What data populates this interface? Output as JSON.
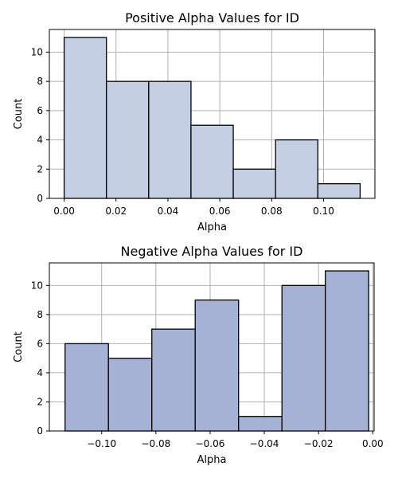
{
  "chart_data": [
    {
      "type": "bar",
      "title": "Positive Alpha Values for ID",
      "xlabel": "Alpha",
      "ylabel": "Count",
      "color": "#c4cfe3",
      "bins": [
        {
          "x0": 0.0,
          "x1": 0.0163,
          "value": 11
        },
        {
          "x0": 0.0163,
          "x1": 0.0326,
          "value": 8
        },
        {
          "x0": 0.0326,
          "x1": 0.0489,
          "value": 8
        },
        {
          "x0": 0.0489,
          "x1": 0.0652,
          "value": 5
        },
        {
          "x0": 0.0652,
          "x1": 0.0815,
          "value": 2
        },
        {
          "x0": 0.0815,
          "x1": 0.0978,
          "value": 4
        },
        {
          "x0": 0.0978,
          "x1": 0.1141,
          "value": 1
        }
      ],
      "xlim": [
        -0.0057,
        0.1198
      ],
      "ylim": [
        0,
        11.55
      ],
      "xticks": [
        0.0,
        0.02,
        0.04,
        0.06,
        0.08,
        0.1
      ],
      "xtick_labels": [
        "0.00",
        "0.02",
        "0.04",
        "0.06",
        "0.08",
        "0.10"
      ],
      "yticks": [
        0,
        2,
        4,
        6,
        8,
        10
      ],
      "ytick_labels": [
        "0",
        "2",
        "4",
        "6",
        "8",
        "10"
      ],
      "grid": true
    },
    {
      "type": "bar",
      "title": "Negative Alpha Values for ID",
      "xlabel": "Alpha",
      "ylabel": "Count",
      "color": "#a5b1d5",
      "bins": [
        {
          "x0": -0.1135,
          "x1": -0.0975,
          "value": 6
        },
        {
          "x0": -0.0975,
          "x1": -0.0815,
          "value": 5
        },
        {
          "x0": -0.0815,
          "x1": -0.0655,
          "value": 7
        },
        {
          "x0": -0.0655,
          "x1": -0.0495,
          "value": 9
        },
        {
          "x0": -0.0495,
          "x1": -0.0335,
          "value": 1
        },
        {
          "x0": -0.0335,
          "x1": -0.0175,
          "value": 10
        },
        {
          "x0": -0.0175,
          "x1": -0.0015,
          "value": 11
        }
      ],
      "xlim": [
        -0.1193,
        0.0005
      ],
      "ylim": [
        0,
        11.55
      ],
      "xticks": [
        -0.1,
        -0.08,
        -0.06,
        -0.04,
        -0.02,
        0.0
      ],
      "xtick_labels": [
        "−0.10",
        "−0.08",
        "−0.06",
        "−0.04",
        "−0.02",
        "0.00"
      ],
      "yticks": [
        0,
        2,
        4,
        6,
        8,
        10
      ],
      "ytick_labels": [
        "0",
        "2",
        "4",
        "6",
        "8",
        "10"
      ],
      "grid": true
    }
  ]
}
